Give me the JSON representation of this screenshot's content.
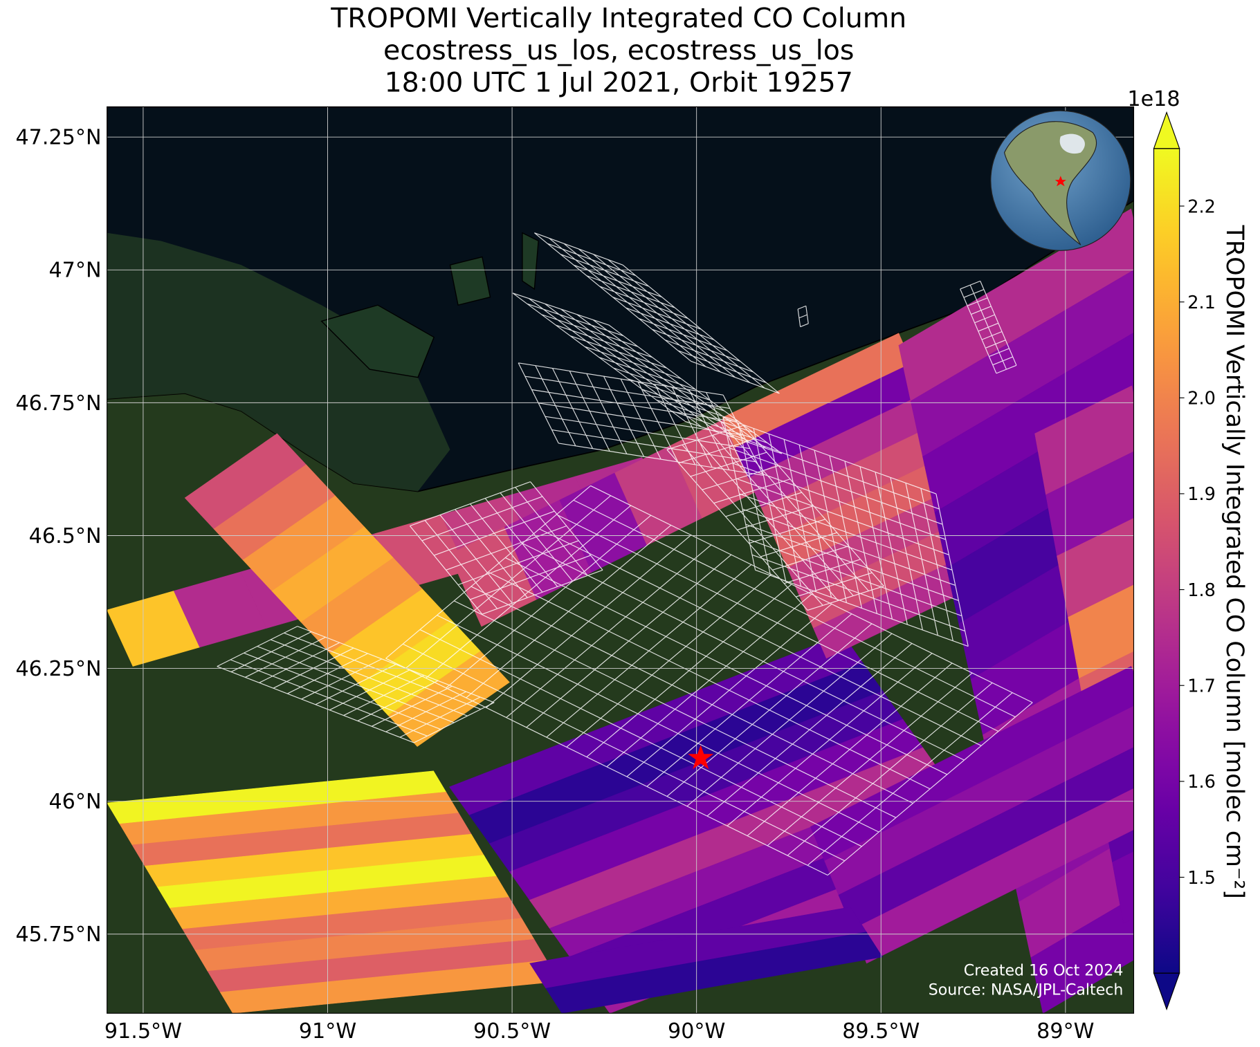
{
  "chart_data": {
    "type": "map",
    "title": "TROPOMI Vertically Integrated CO Column",
    "subtitle": [
      "ecostress_us_los, ecostress_us_los",
      "18:00 UTC 1 Jul 2021, Orbit 19257"
    ],
    "xlim": [
      -91.598,
      -88.815
    ],
    "ylim": [
      45.601,
      47.307
    ],
    "xticks": [
      {
        "value": -91.5,
        "label": "91.5°W"
      },
      {
        "value": -91,
        "label": "91°W"
      },
      {
        "value": -90.5,
        "label": "90.5°W"
      },
      {
        "value": -90,
        "label": "90°W"
      },
      {
        "value": -89.5,
        "label": "89.5°W"
      },
      {
        "value": -89,
        "label": "89°W"
      }
    ],
    "yticks": [
      {
        "value": 45.75,
        "label": "45.75°N"
      },
      {
        "value": 46,
        "label": "46°N"
      },
      {
        "value": 46.25,
        "label": "46.25°N"
      },
      {
        "value": 46.5,
        "label": "46.5°N"
      },
      {
        "value": 46.75,
        "label": "46.75°N"
      },
      {
        "value": 47,
        "label": "47°N"
      },
      {
        "value": 47.25,
        "label": "47.25°N"
      }
    ],
    "grid": true,
    "colormap": "plasma",
    "clim": [
      1.4,
      2.26
    ],
    "cticks": [
      1.5,
      1.6,
      1.7,
      1.8,
      1.9,
      {
        "value": 2,
        "label": "2.0"
      },
      2.1,
      2.2
    ],
    "colorbar_label": "TROPOMI Vertically Integrated CO Column [molec cm⁻²]",
    "colorbar_exponent": "1e18",
    "annotations": [
      "Created 16 Oct 2024",
      "Source: NASA/JPL-Caltech"
    ],
    "swaths": [
      {
        "corners": [
          [
            -91.598,
            46.36
          ],
          [
            -91.528,
            46.254
          ],
          [
            -90.148,
            46.647
          ]
        ],
        "values": [
          2.15,
          1.75,
          1.75,
          1.8,
          1.85,
          1.8,
          1.75,
          1.75
        ]
      },
      {
        "corners": [
          [
            -91.387,
            46.571
          ],
          [
            -91.137,
            46.692
          ],
          [
            -90.757,
            46.103
          ]
        ],
        "values": [
          1.85,
          1.95,
          2.05,
          2.1,
          2.05,
          2.15,
          2.2,
          2.1
        ]
      },
      {
        "corners": [
          [
            -91.598,
            45.997
          ],
          [
            -90.713,
            46.057
          ],
          [
            -91.257,
            45.601
          ]
        ],
        "values": [
          2.25,
          2.05,
          1.95,
          2.15,
          2.25,
          2.1,
          1.95,
          2.0,
          1.9,
          2.05
        ]
      },
      {
        "corners": [
          [
            -90.67,
            46.027
          ],
          [
            -89.604,
            46.314
          ],
          [
            -90.235,
            45.601
          ]
        ],
        "values": [
          1.55,
          1.45,
          1.5,
          1.6,
          1.75,
          1.65,
          1.55,
          1.7
        ]
      },
      {
        "corners": [
          [
            -90.67,
            46.465
          ],
          [
            -90.583,
            46.329
          ],
          [
            -89.474,
            46.873
          ]
        ],
        "values": [
          1.85,
          1.7,
          1.65,
          1.8,
          1.85,
          1.9,
          1.95,
          1.95
        ]
      },
      {
        "corners": [
          [
            -89.93,
            46.722
          ],
          [
            -89.452,
            46.881
          ],
          [
            -89.648,
            46.269
          ]
        ],
        "values": [
          1.95,
          1.6,
          1.75,
          1.85,
          1.9,
          1.8,
          1.85,
          1.75
        ]
      },
      {
        "corners": [
          [
            -89.452,
            46.858
          ],
          [
            -88.822,
            47.115
          ],
          [
            -89.061,
            45.601
          ]
        ],
        "values": [
          1.75,
          1.65,
          1.6,
          1.55,
          1.5,
          1.55,
          1.6,
          1.7,
          1.75,
          1.65,
          1.7,
          1.6
        ]
      },
      {
        "corners": [
          [
            -89.083,
            46.692
          ],
          [
            -88.82,
            46.782
          ],
          [
            -88.843,
            45.77
          ]
        ],
        "values": [
          1.75,
          1.65,
          1.8,
          2.0,
          1.9,
          1.7,
          1.55,
          1.6
        ]
      },
      {
        "corners": [
          [
            -89.691,
            45.952
          ],
          [
            -88.822,
            46.254
          ],
          [
            -89.539,
            45.695
          ]
        ],
        "values": [
          1.6,
          1.65,
          1.55,
          1.7
        ]
      },
      {
        "corners": [
          [
            -90.452,
            45.695
          ],
          [
            -89.583,
            45.801
          ],
          [
            -90.365,
            45.601
          ]
        ],
        "values": [
          1.55,
          1.45
        ]
      }
    ]
  }
}
